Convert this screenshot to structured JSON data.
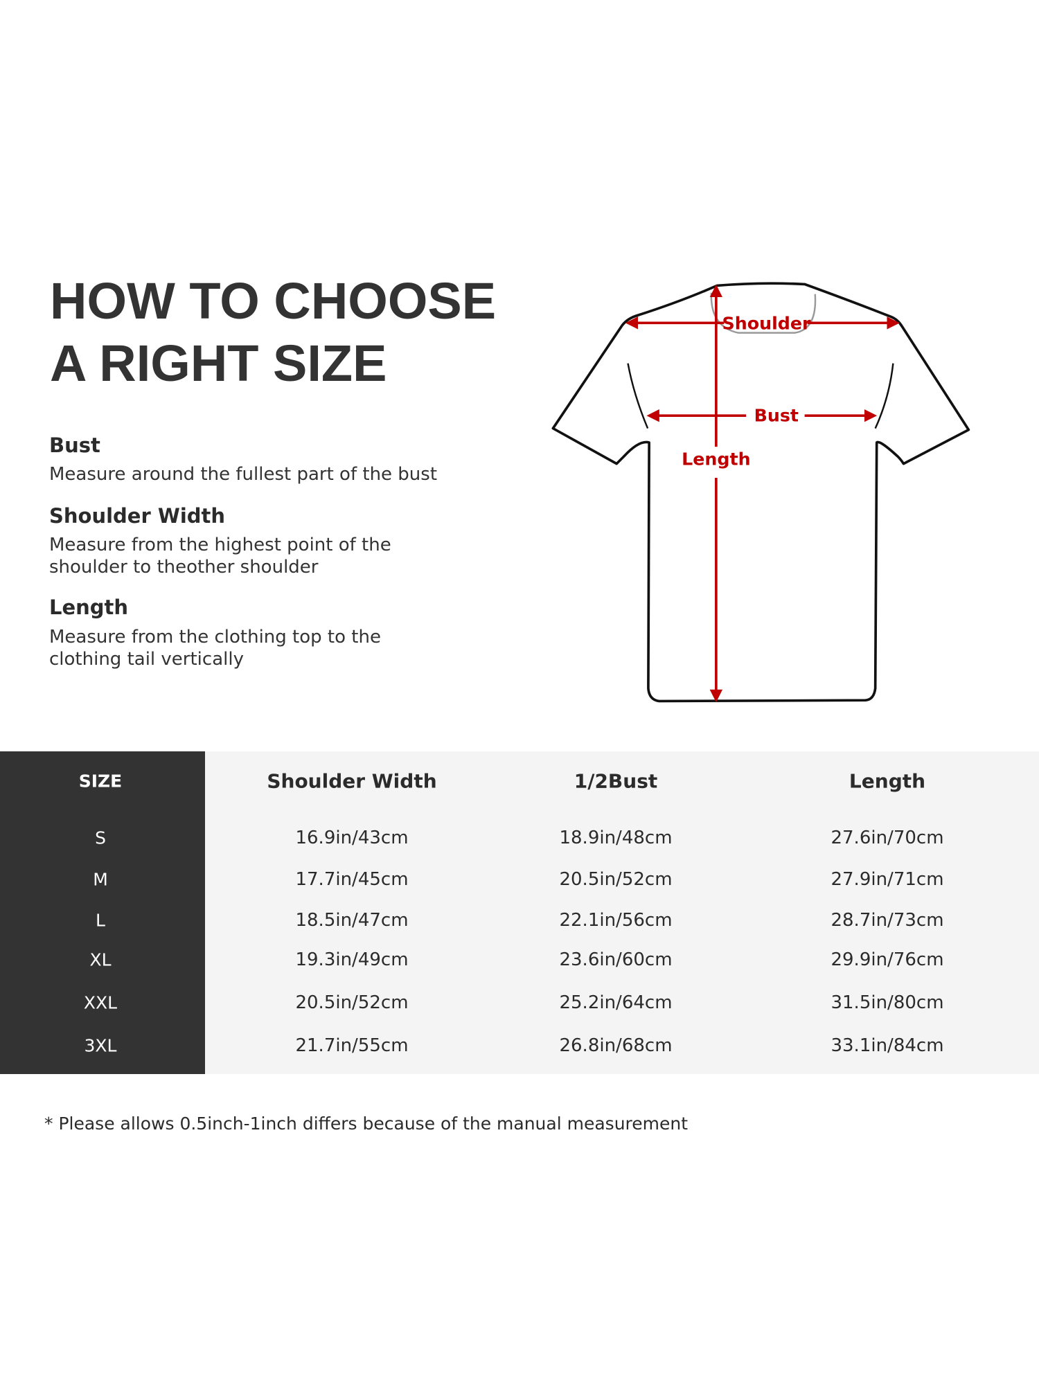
{
  "title": {
    "line1": "HOW TO CHOOSE",
    "line2": "A RIGHT SIZE"
  },
  "guides": [
    {
      "heading": "Bust",
      "lines": [
        "Measure around the fullest part of the bust"
      ]
    },
    {
      "heading": "Shoulder Width",
      "lines": [
        "Measure from the highest point of the",
        "shoulder to theother shoulder"
      ]
    },
    {
      "heading": "Length",
      "lines": [
        "Measure from the clothing top to the",
        "clothing tail vertically"
      ]
    }
  ],
  "diagram": {
    "labels": {
      "shoulder": "Shoulder",
      "bust": "Bust",
      "length": "Length"
    },
    "arrow_color": "#c00000"
  },
  "table": {
    "headers": [
      "SIZE",
      "Shoulder Width",
      "1/2Bust",
      "Length"
    ],
    "rows": [
      [
        "S",
        "16.9in/43cm",
        "18.9in/48cm",
        "27.6in/70cm"
      ],
      [
        "M",
        "17.7in/45cm",
        "20.5in/52cm",
        "27.9in/71cm"
      ],
      [
        "L",
        "18.5in/47cm",
        "22.1in/56cm",
        "28.7in/73cm"
      ],
      [
        "XL",
        "19.3in/49cm",
        "23.6in/60cm",
        "29.9in/76cm"
      ],
      [
        "XXL",
        "20.5in/52cm",
        "25.2in/64cm",
        "31.5in/80cm"
      ],
      [
        "3XL",
        "21.7in/55cm",
        "26.8in/68cm",
        "33.1in/84cm"
      ]
    ],
    "size_column_color": "#333333",
    "body_color": "#f4f4f4"
  },
  "footnote": "* Please allows 0.5inch-1inch differs because of the  manual measurement"
}
